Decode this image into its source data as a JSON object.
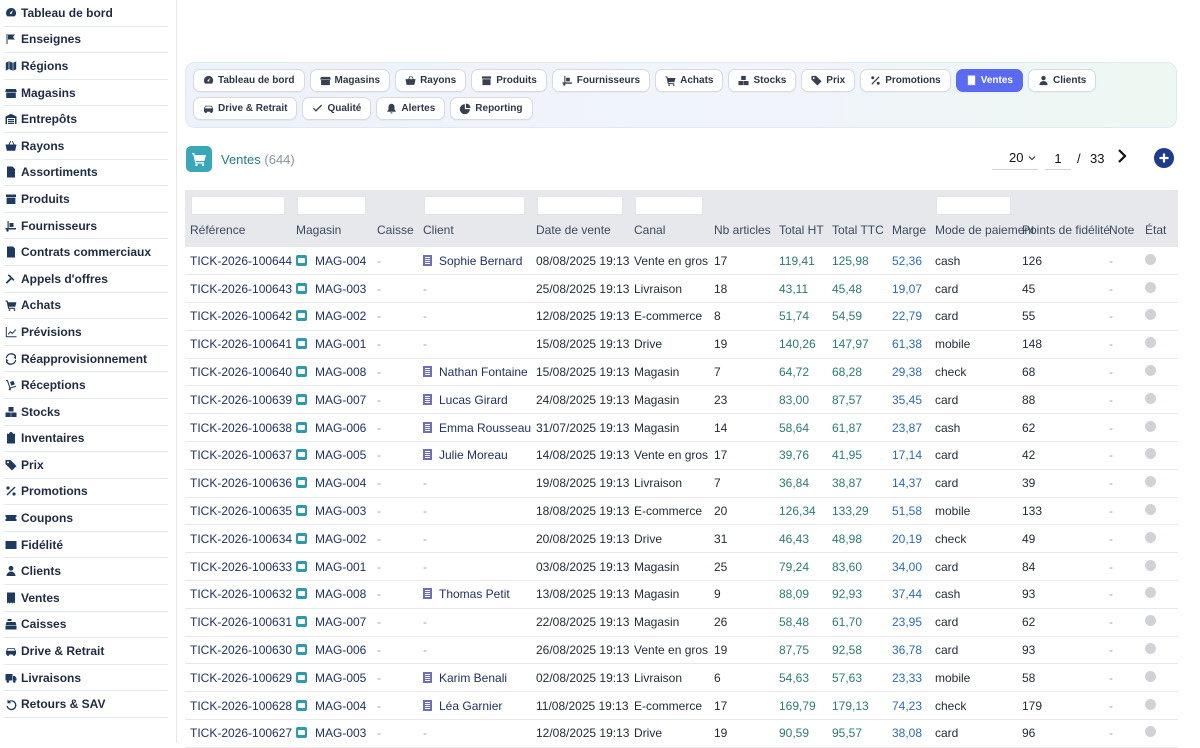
{
  "sidebar": {
    "items": [
      {
        "label": "Tableau de bord",
        "icon": "gauge-icon"
      },
      {
        "label": "Enseignes",
        "icon": "flag-icon"
      },
      {
        "label": "Régions",
        "icon": "map-icon"
      },
      {
        "label": "Magasins",
        "icon": "store-icon"
      },
      {
        "label": "Entrepôts",
        "icon": "warehouse-icon"
      },
      {
        "label": "Rayons",
        "icon": "basket-icon"
      },
      {
        "label": "Assortiments",
        "icon": "document-icon"
      },
      {
        "label": "Produits",
        "icon": "box-icon"
      },
      {
        "label": "Fournisseurs",
        "icon": "truck-loading-icon"
      },
      {
        "label": "Contrats commerciaux",
        "icon": "contract-icon"
      },
      {
        "label": "Appels d'offres",
        "icon": "gavel-icon"
      },
      {
        "label": "Achats",
        "icon": "cart-icon"
      },
      {
        "label": "Prévisions",
        "icon": "chart-line-icon"
      },
      {
        "label": "Réapprovisionnement",
        "icon": "refresh-icon"
      },
      {
        "label": "Réceptions",
        "icon": "dolly-icon"
      },
      {
        "label": "Stocks",
        "icon": "boxes-icon"
      },
      {
        "label": "Inventaires",
        "icon": "clipboard-icon"
      },
      {
        "label": "Prix",
        "icon": "tags-icon"
      },
      {
        "label": "Promotions",
        "icon": "percent-icon"
      },
      {
        "label": "Coupons",
        "icon": "ticket-icon"
      },
      {
        "label": "Fidélité",
        "icon": "id-card-icon"
      },
      {
        "label": "Clients",
        "icon": "user-icon"
      },
      {
        "label": "Ventes",
        "icon": "receipt-icon"
      },
      {
        "label": "Caisses",
        "icon": "cash-register-icon"
      },
      {
        "label": "Drive & Retrait",
        "icon": "car-icon"
      },
      {
        "label": "Livraisons",
        "icon": "truck-icon"
      },
      {
        "label": "Retours & SAV",
        "icon": "undo-icon"
      }
    ]
  },
  "tabs": [
    {
      "label": "Tableau de bord",
      "icon": "gauge-icon",
      "active": false
    },
    {
      "label": "Magasins",
      "icon": "store-icon",
      "active": false
    },
    {
      "label": "Rayons",
      "icon": "basket-icon",
      "active": false
    },
    {
      "label": "Produits",
      "icon": "box-icon",
      "active": false
    },
    {
      "label": "Fournisseurs",
      "icon": "truck-loading-icon",
      "active": false
    },
    {
      "label": "Achats",
      "icon": "cart-icon",
      "active": false
    },
    {
      "label": "Stocks",
      "icon": "boxes-icon",
      "active": false
    },
    {
      "label": "Prix",
      "icon": "tags-icon",
      "active": false
    },
    {
      "label": "Promotions",
      "icon": "percent-icon",
      "active": false
    },
    {
      "label": "Ventes",
      "icon": "receipt-icon",
      "active": true
    },
    {
      "label": "Clients",
      "icon": "user-icon",
      "active": false
    },
    {
      "label": "Drive & Retrait",
      "icon": "car-icon",
      "active": false
    },
    {
      "label": "Qualité",
      "icon": "check-icon",
      "active": false
    },
    {
      "label": "Alertes",
      "icon": "bell-icon",
      "active": false
    },
    {
      "label": "Reporting",
      "icon": "pie-chart-icon",
      "active": false
    }
  ],
  "page": {
    "title": "Ventes",
    "count": "(644)",
    "icon": "cart-icon"
  },
  "pager": {
    "page_size": "20",
    "current_page": "1",
    "separator": "/",
    "total_pages": "33"
  },
  "table": {
    "columns": [
      "Référence",
      "Magasin",
      "Caisse",
      "Client",
      "Date de vente",
      "Canal",
      "Nb articles",
      "Total HT",
      "Total TTC",
      "Marge",
      "Mode de paiement",
      "Points de fidélité",
      "Note",
      "État"
    ],
    "rows": [
      {
        "ref": "TICK-2026-100644",
        "magasin": "MAG-004",
        "caisse": "-",
        "client": "Sophie Bernard",
        "date": "08/08/2025 19:13",
        "canal": "Vente en gros",
        "nb": "17",
        "ht": "119,41",
        "ttc": "125,98",
        "marge": "52,36",
        "paiement": "cash",
        "points": "126",
        "note": "-"
      },
      {
        "ref": "TICK-2026-100643",
        "magasin": "MAG-003",
        "caisse": "-",
        "client": "-",
        "date": "25/08/2025 19:13",
        "canal": "Livraison",
        "nb": "18",
        "ht": "43,11",
        "ttc": "45,48",
        "marge": "19,07",
        "paiement": "card",
        "points": "45",
        "note": "-"
      },
      {
        "ref": "TICK-2026-100642",
        "magasin": "MAG-002",
        "caisse": "-",
        "client": "-",
        "date": "12/08/2025 19:13",
        "canal": "E-commerce",
        "nb": "8",
        "ht": "51,74",
        "ttc": "54,59",
        "marge": "22,79",
        "paiement": "card",
        "points": "55",
        "note": "-"
      },
      {
        "ref": "TICK-2026-100641",
        "magasin": "MAG-001",
        "caisse": "-",
        "client": "-",
        "date": "15/08/2025 19:13",
        "canal": "Drive",
        "nb": "19",
        "ht": "140,26",
        "ttc": "147,97",
        "marge": "61,38",
        "paiement": "mobile",
        "points": "148",
        "note": "-"
      },
      {
        "ref": "TICK-2026-100640",
        "magasin": "MAG-008",
        "caisse": "-",
        "client": "Nathan Fontaine",
        "date": "15/08/2025 19:13",
        "canal": "Magasin",
        "nb": "7",
        "ht": "64,72",
        "ttc": "68,28",
        "marge": "29,38",
        "paiement": "check",
        "points": "68",
        "note": "-"
      },
      {
        "ref": "TICK-2026-100639",
        "magasin": "MAG-007",
        "caisse": "-",
        "client": "Lucas Girard",
        "date": "24/08/2025 19:13",
        "canal": "Magasin",
        "nb": "23",
        "ht": "83,00",
        "ttc": "87,57",
        "marge": "35,45",
        "paiement": "card",
        "points": "88",
        "note": "-"
      },
      {
        "ref": "TICK-2026-100638",
        "magasin": "MAG-006",
        "caisse": "-",
        "client": "Emma Rousseau",
        "date": "31/07/2025 19:13",
        "canal": "Magasin",
        "nb": "14",
        "ht": "58,64",
        "ttc": "61,87",
        "marge": "23,87",
        "paiement": "cash",
        "points": "62",
        "note": "-"
      },
      {
        "ref": "TICK-2026-100637",
        "magasin": "MAG-005",
        "caisse": "-",
        "client": "Julie Moreau",
        "date": "14/08/2025 19:13",
        "canal": "Vente en gros",
        "nb": "17",
        "ht": "39,76",
        "ttc": "41,95",
        "marge": "17,14",
        "paiement": "card",
        "points": "42",
        "note": "-"
      },
      {
        "ref": "TICK-2026-100636",
        "magasin": "MAG-004",
        "caisse": "-",
        "client": "-",
        "date": "19/08/2025 19:13",
        "canal": "Livraison",
        "nb": "7",
        "ht": "36,84",
        "ttc": "38,87",
        "marge": "14,37",
        "paiement": "card",
        "points": "39",
        "note": "-"
      },
      {
        "ref": "TICK-2026-100635",
        "magasin": "MAG-003",
        "caisse": "-",
        "client": "-",
        "date": "18/08/2025 19:13",
        "canal": "E-commerce",
        "nb": "20",
        "ht": "126,34",
        "ttc": "133,29",
        "marge": "51,58",
        "paiement": "mobile",
        "points": "133",
        "note": "-"
      },
      {
        "ref": "TICK-2026-100634",
        "magasin": "MAG-002",
        "caisse": "-",
        "client": "-",
        "date": "20/08/2025 19:13",
        "canal": "Drive",
        "nb": "31",
        "ht": "46,43",
        "ttc": "48,98",
        "marge": "20,19",
        "paiement": "check",
        "points": "49",
        "note": "-"
      },
      {
        "ref": "TICK-2026-100633",
        "magasin": "MAG-001",
        "caisse": "-",
        "client": "-",
        "date": "03/08/2025 19:13",
        "canal": "Magasin",
        "nb": "25",
        "ht": "79,24",
        "ttc": "83,60",
        "marge": "34,00",
        "paiement": "card",
        "points": "84",
        "note": "-"
      },
      {
        "ref": "TICK-2026-100632",
        "magasin": "MAG-008",
        "caisse": "-",
        "client": "Thomas Petit",
        "date": "13/08/2025 19:13",
        "canal": "Magasin",
        "nb": "9",
        "ht": "88,09",
        "ttc": "92,93",
        "marge": "37,44",
        "paiement": "cash",
        "points": "93",
        "note": "-"
      },
      {
        "ref": "TICK-2026-100631",
        "magasin": "MAG-007",
        "caisse": "-",
        "client": "-",
        "date": "22/08/2025 19:13",
        "canal": "Magasin",
        "nb": "26",
        "ht": "58,48",
        "ttc": "61,70",
        "marge": "23,95",
        "paiement": "card",
        "points": "62",
        "note": "-"
      },
      {
        "ref": "TICK-2026-100630",
        "magasin": "MAG-006",
        "caisse": "-",
        "client": "-",
        "date": "26/08/2025 19:13",
        "canal": "Vente en gros",
        "nb": "19",
        "ht": "87,75",
        "ttc": "92,58",
        "marge": "36,78",
        "paiement": "card",
        "points": "93",
        "note": "-"
      },
      {
        "ref": "TICK-2026-100629",
        "magasin": "MAG-005",
        "caisse": "-",
        "client": "Karim Benali",
        "date": "02/08/2025 19:13",
        "canal": "Livraison",
        "nb": "6",
        "ht": "54,63",
        "ttc": "57,63",
        "marge": "23,33",
        "paiement": "mobile",
        "points": "58",
        "note": "-"
      },
      {
        "ref": "TICK-2026-100628",
        "magasin": "MAG-004",
        "caisse": "-",
        "client": "Léa Garnier",
        "date": "11/08/2025 19:13",
        "canal": "E-commerce",
        "nb": "17",
        "ht": "169,79",
        "ttc": "179,13",
        "marge": "74,23",
        "paiement": "check",
        "points": "179",
        "note": "-"
      },
      {
        "ref": "TICK-2026-100627",
        "magasin": "MAG-003",
        "caisse": "-",
        "client": "-",
        "date": "12/08/2025 19:13",
        "canal": "Drive",
        "nb": "19",
        "ht": "90,59",
        "ttc": "95,57",
        "marge": "38,08",
        "paiement": "card",
        "points": "96",
        "note": "-"
      }
    ]
  },
  "colors": {
    "accent": "#5b6bf0",
    "teal": "#3aa7b8",
    "navy": "#1e3a8a"
  }
}
